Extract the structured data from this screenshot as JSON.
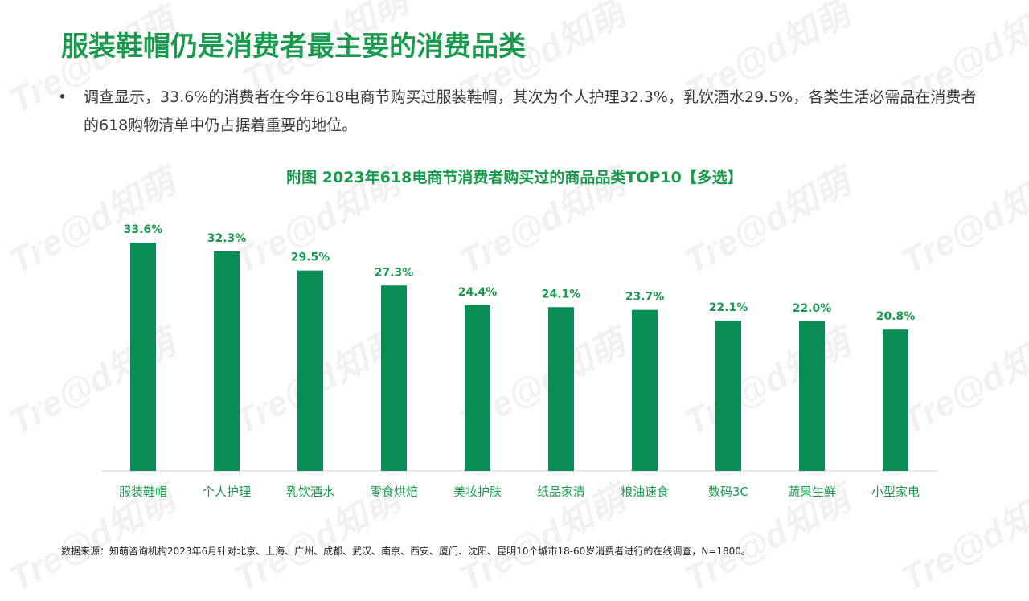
{
  "title": "服装鞋帽仍是消费者最主要的消费品类",
  "bullet": {
    "symbol": "•",
    "text": "调查显示，33.6%的消费者在今年618电商节购买过服装鞋帽，其次为个人护理32.3%，乳饮酒水29.5%，各类生活必需品在消费者的618购物清单中仍占据着重要的地位。"
  },
  "watermark": "Tre@d知萌",
  "colors": {
    "accent": "#1a9a4f",
    "bar": "#0a8c55",
    "axis": "#d0d0d0"
  },
  "chart_data": {
    "type": "bar",
    "title": "附图 2023年618电商节消费者购买过的商品品类TOP10【多选】",
    "categories": [
      "服装鞋帽",
      "个人护理",
      "乳饮酒水",
      "零食烘焙",
      "美妆护肤",
      "纸品家清",
      "粮油速食",
      "数码3C",
      "蔬果生鲜",
      "小型家电"
    ],
    "values": [
      33.6,
      32.3,
      29.5,
      27.3,
      24.4,
      24.1,
      23.7,
      22.1,
      22.0,
      20.8
    ],
    "value_labels": [
      "33.6%",
      "32.3%",
      "29.5%",
      "27.3%",
      "24.4%",
      "24.1%",
      "23.7%",
      "22.1%",
      "22.0%",
      "20.8%"
    ],
    "ylim": [
      0,
      33.6
    ],
    "grid": false,
    "xlabel": "",
    "ylabel": ""
  },
  "footnote": "数据来源：知萌咨询机构2023年6月针对北京、上海、广州、成都、武汉、南京、西安、厦门、沈阳、昆明10个城市18-60岁消费者进行的在线调查，N=1800。"
}
